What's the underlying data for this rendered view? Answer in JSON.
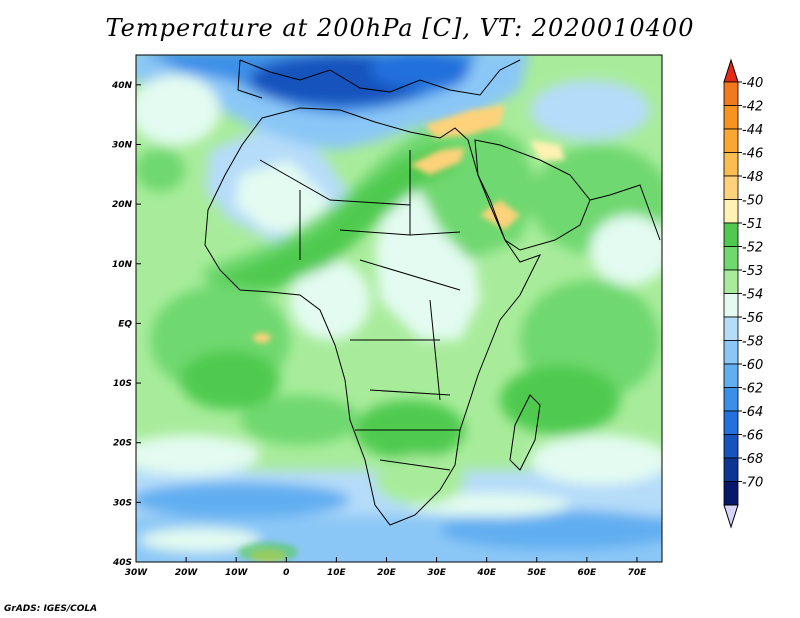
{
  "title": "Temperature at 200hPa [C], VT: 2020010400",
  "credit": "GrADS: IGES/COLA",
  "map": {
    "lon_range": [
      -30,
      75
    ],
    "lat_range": [
      -40,
      45
    ],
    "lon_ticks": [
      {
        "lon": -30,
        "label": "30W"
      },
      {
        "lon": -20,
        "label": "20W"
      },
      {
        "lon": -10,
        "label": "10W"
      },
      {
        "lon": 0,
        "label": "0"
      },
      {
        "lon": 10,
        "label": "10E"
      },
      {
        "lon": 20,
        "label": "20E"
      },
      {
        "lon": 30,
        "label": "30E"
      },
      {
        "lon": 40,
        "label": "40E"
      },
      {
        "lon": 50,
        "label": "50E"
      },
      {
        "lon": 60,
        "label": "60E"
      },
      {
        "lon": 70,
        "label": "70E"
      }
    ],
    "lat_ticks": [
      {
        "lat": 40,
        "label": "40N"
      },
      {
        "lat": 30,
        "label": "30N"
      },
      {
        "lat": 20,
        "label": "20N"
      },
      {
        "lat": 10,
        "label": "10N"
      },
      {
        "lat": 0,
        "label": "EQ"
      },
      {
        "lat": -10,
        "label": "10S"
      },
      {
        "lat": -20,
        "label": "20S"
      },
      {
        "lat": -30,
        "label": "30S"
      },
      {
        "lat": -40,
        "label": "40S"
      }
    ]
  },
  "colorbar": {
    "levels": [
      {
        "label": "-40",
        "color": "#f27a1e"
      },
      {
        "label": "-42",
        "color": "#f7931e"
      },
      {
        "label": "-44",
        "color": "#f9a632"
      },
      {
        "label": "-46",
        "color": "#fbbd4f"
      },
      {
        "label": "-48",
        "color": "#fdd27a"
      },
      {
        "label": "-50",
        "color": "#fff2b2"
      },
      {
        "label": "-51",
        "color": "#4fca4f"
      },
      {
        "label": "-52",
        "color": "#6fd86f"
      },
      {
        "label": "-53",
        "color": "#a8ec9b"
      },
      {
        "label": "-54",
        "color": "#e3fbf1"
      },
      {
        "label": "-56",
        "color": "#b5dcf9"
      },
      {
        "label": "-58",
        "color": "#8bc7f6"
      },
      {
        "label": "-60",
        "color": "#61aef1"
      },
      {
        "label": "-62",
        "color": "#3c8fe8"
      },
      {
        "label": "-64",
        "color": "#2470dc"
      },
      {
        "label": "-66",
        "color": "#1753bd"
      },
      {
        "label": "-68",
        "color": "#0d3592"
      },
      {
        "label": "-70",
        "color": "#07186a"
      }
    ],
    "top_triangle_color": "#e32a12",
    "bottom_triangle_color": "#d6d4fa"
  }
}
